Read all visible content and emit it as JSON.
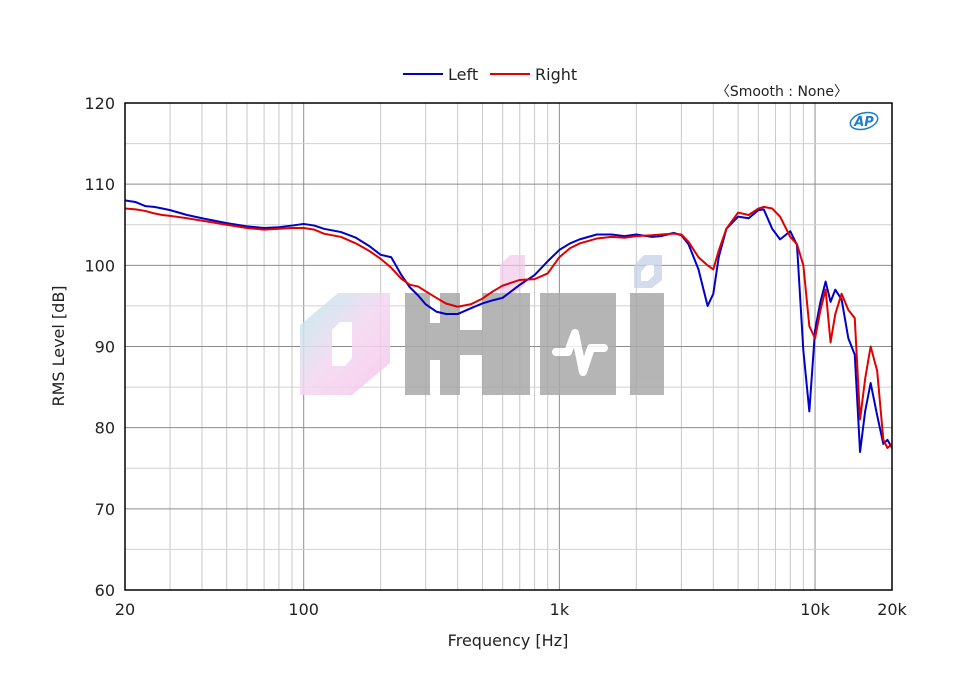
{
  "chart_data": {
    "type": "line",
    "title": "",
    "xlabel": "Frequency [Hz]",
    "ylabel": "RMS Level [dB]",
    "xscale": "log",
    "xlim": [
      20,
      20000
    ],
    "ylim": [
      60,
      120
    ],
    "xticks": [
      {
        "value": 20,
        "label": "20"
      },
      {
        "value": 100,
        "label": "100"
      },
      {
        "value": 1000,
        "label": "1k"
      },
      {
        "value": 10000,
        "label": "10k"
      },
      {
        "value": 20000,
        "label": "20k"
      }
    ],
    "yticks": [
      60,
      70,
      80,
      90,
      100,
      110,
      120
    ],
    "grid": true,
    "legend_position": "top-center",
    "smooth_note": "〈Smooth : None〉",
    "watermark_text": "ChiFi",
    "badge_text": "AP",
    "series": [
      {
        "name": "Left",
        "color": "#0000c8",
        "x": [
          20,
          22,
          24,
          26,
          28,
          30,
          35,
          40,
          50,
          60,
          70,
          80,
          90,
          100,
          110,
          120,
          140,
          160,
          180,
          200,
          220,
          240,
          260,
          280,
          300,
          330,
          360,
          400,
          450,
          500,
          550,
          600,
          700,
          800,
          900,
          1000,
          1100,
          1200,
          1400,
          1600,
          1800,
          2000,
          2300,
          2500,
          2800,
          3000,
          3200,
          3500,
          3800,
          4000,
          4200,
          4500,
          5000,
          5500,
          6000,
          6300,
          6800,
          7300,
          8000,
          8500,
          9000,
          9500,
          10000,
          10500,
          11000,
          11500,
          12000,
          12700,
          13500,
          14300,
          15000,
          15700,
          16500,
          17500,
          18500,
          19200,
          20000
        ],
        "y": [
          108,
          107.8,
          107.3,
          107.2,
          107,
          106.8,
          106.2,
          105.8,
          105.2,
          104.8,
          104.6,
          104.7,
          104.9,
          105.1,
          104.9,
          104.5,
          104.1,
          103.4,
          102.4,
          101.3,
          101.0,
          98.9,
          97.3,
          96.3,
          95.2,
          94.3,
          94.0,
          94.0,
          94.7,
          95.3,
          95.7,
          96.0,
          97.6,
          98.8,
          100.5,
          101.9,
          102.7,
          103.2,
          103.8,
          103.8,
          103.6,
          103.8,
          103.5,
          103.6,
          104.0,
          103.7,
          102.6,
          99.5,
          95.0,
          96.5,
          101.0,
          104.5,
          106.0,
          105.8,
          106.8,
          106.9,
          104.5,
          103.2,
          104.2,
          102.5,
          89.5,
          82.0,
          92.0,
          95.5,
          98.0,
          95.5,
          97.0,
          95.8,
          91.0,
          89.0,
          77.0,
          82.0,
          85.5,
          81.5,
          78.0,
          78.5,
          77.5
        ]
      },
      {
        "name": "Right",
        "color": "#e00000",
        "x": [
          20,
          22,
          24,
          26,
          28,
          30,
          35,
          40,
          50,
          60,
          70,
          80,
          90,
          100,
          110,
          120,
          140,
          160,
          180,
          200,
          220,
          240,
          260,
          280,
          300,
          330,
          360,
          400,
          450,
          500,
          550,
          600,
          700,
          800,
          900,
          1000,
          1100,
          1200,
          1400,
          1600,
          1800,
          2000,
          2300,
          2500,
          2800,
          3000,
          3200,
          3500,
          3800,
          4000,
          4200,
          4500,
          5000,
          5500,
          6000,
          6300,
          6800,
          7300,
          8000,
          8500,
          9000,
          9500,
          10000,
          10500,
          11000,
          11500,
          12000,
          12700,
          13500,
          14300,
          15000,
          15700,
          16500,
          17500,
          18500,
          19200,
          20000
        ],
        "y": [
          107,
          106.9,
          106.7,
          106.4,
          106.2,
          106.1,
          105.8,
          105.5,
          105.0,
          104.6,
          104.4,
          104.5,
          104.6,
          104.6,
          104.4,
          103.9,
          103.5,
          102.7,
          101.8,
          100.8,
          99.7,
          98.4,
          97.6,
          97.4,
          96.8,
          96.0,
          95.3,
          94.9,
          95.2,
          95.9,
          96.8,
          97.5,
          98.2,
          98.3,
          99.0,
          101.0,
          102.1,
          102.7,
          103.3,
          103.5,
          103.4,
          103.6,
          103.7,
          103.8,
          103.9,
          103.8,
          102.9,
          101.0,
          100.0,
          99.5,
          101.8,
          104.5,
          106.5,
          106.2,
          107.0,
          107.2,
          107.0,
          106.0,
          103.5,
          102.6,
          100.0,
          92.5,
          91.0,
          94.5,
          97.0,
          90.5,
          94.0,
          96.5,
          94.5,
          93.5,
          81.0,
          86.0,
          90.0,
          87.0,
          78.5,
          77.5,
          78.0
        ]
      }
    ]
  }
}
